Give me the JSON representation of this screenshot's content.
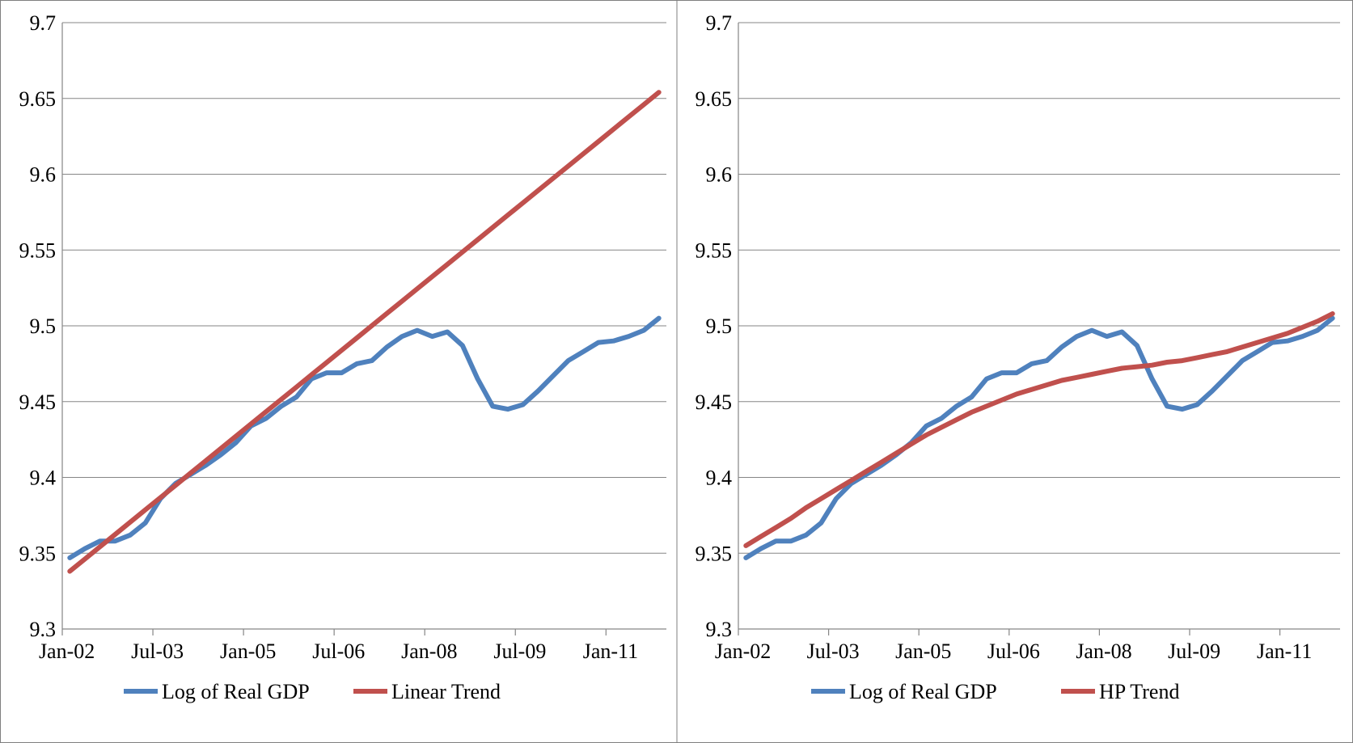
{
  "chart_data": [
    {
      "type": "line",
      "categories": [
        "Jan-02",
        "Apr-02",
        "Jul-02",
        "Oct-02",
        "Jan-03",
        "Apr-03",
        "Jul-03",
        "Oct-03",
        "Jan-04",
        "Apr-04",
        "Jul-04",
        "Oct-04",
        "Jan-05",
        "Apr-05",
        "Jul-05",
        "Oct-05",
        "Jan-06",
        "Apr-06",
        "Jul-06",
        "Oct-06",
        "Jan-07",
        "Apr-07",
        "Jul-07",
        "Oct-07",
        "Jan-08",
        "Apr-08",
        "Jul-08",
        "Oct-08",
        "Jan-09",
        "Apr-09",
        "Jul-09",
        "Oct-09",
        "Jan-10",
        "Apr-10",
        "Jul-10",
        "Oct-10",
        "Jan-11",
        "Apr-11",
        "Jul-11",
        "Oct-11"
      ],
      "tick_labels": [
        "Jan-02",
        "Jul-03",
        "Jan-05",
        "Jul-06",
        "Jan-08",
        "Jul-09",
        "Jan-11"
      ],
      "y_ticks": [
        "9.3",
        "9.35",
        "9.4",
        "9.45",
        "9.5",
        "9.55",
        "9.6",
        "9.65",
        "9.7"
      ],
      "ylim": [
        9.3,
        9.7
      ],
      "grid": true,
      "legend_position": "bottom",
      "series": [
        {
          "name": "Log of Real GDP",
          "color": "#4f81bd",
          "values": [
            9.347,
            9.353,
            9.358,
            9.358,
            9.362,
            9.37,
            9.386,
            9.396,
            9.402,
            9.408,
            9.415,
            9.423,
            9.434,
            9.439,
            9.447,
            9.453,
            9.465,
            9.469,
            9.469,
            9.475,
            9.477,
            9.486,
            9.493,
            9.497,
            9.493,
            9.496,
            9.487,
            9.465,
            9.447,
            9.445,
            9.448,
            9.457,
            9.467,
            9.477,
            9.483,
            9.489,
            9.49,
            9.493,
            9.497,
            9.505
          ]
        },
        {
          "name": "Linear Trend",
          "color": "#c0504d",
          "values": [
            9.3381,
            9.3462,
            9.3543,
            9.3624,
            9.3705,
            9.3786,
            9.3867,
            9.3948,
            9.4029,
            9.411,
            9.4191,
            9.4272,
            9.4353,
            9.4434,
            9.4515,
            9.4596,
            9.4677,
            9.4758,
            9.4839,
            9.492,
            9.5001,
            9.5082,
            9.5163,
            9.5244,
            9.5325,
            9.5406,
            9.5487,
            9.5568,
            9.5649,
            9.573,
            9.5811,
            9.5892,
            9.5973,
            9.6054,
            9.6135,
            9.6216,
            9.6297,
            9.6378,
            9.6459,
            9.654
          ]
        }
      ]
    },
    {
      "type": "line",
      "categories": [
        "Jan-02",
        "Apr-02",
        "Jul-02",
        "Oct-02",
        "Jan-03",
        "Apr-03",
        "Jul-03",
        "Oct-03",
        "Jan-04",
        "Apr-04",
        "Jul-04",
        "Oct-04",
        "Jan-05",
        "Apr-05",
        "Jul-05",
        "Oct-05",
        "Jan-06",
        "Apr-06",
        "Jul-06",
        "Oct-06",
        "Jan-07",
        "Apr-07",
        "Jul-07",
        "Oct-07",
        "Jan-08",
        "Apr-08",
        "Jul-08",
        "Oct-08",
        "Jan-09",
        "Apr-09",
        "Jul-09",
        "Oct-09",
        "Jan-10",
        "Apr-10",
        "Jul-10",
        "Oct-10",
        "Jan-11",
        "Apr-11",
        "Jul-11",
        "Oct-11"
      ],
      "tick_labels": [
        "Jan-02",
        "Jul-03",
        "Jan-05",
        "Jul-06",
        "Jan-08",
        "Jul-09",
        "Jan-11"
      ],
      "y_ticks": [
        "9.3",
        "9.35",
        "9.4",
        "9.45",
        "9.5",
        "9.55",
        "9.6",
        "9.65",
        "9.7"
      ],
      "ylim": [
        9.3,
        9.7
      ],
      "grid": true,
      "legend_position": "bottom",
      "series": [
        {
          "name": "Log of Real GDP",
          "color": "#4f81bd",
          "values": [
            9.347,
            9.353,
            9.358,
            9.358,
            9.362,
            9.37,
            9.386,
            9.396,
            9.402,
            9.408,
            9.415,
            9.423,
            9.434,
            9.439,
            9.447,
            9.453,
            9.465,
            9.469,
            9.469,
            9.475,
            9.477,
            9.486,
            9.493,
            9.497,
            9.493,
            9.496,
            9.487,
            9.465,
            9.447,
            9.445,
            9.448,
            9.457,
            9.467,
            9.477,
            9.483,
            9.489,
            9.49,
            9.493,
            9.497,
            9.505
          ]
        },
        {
          "name": "HP Trend",
          "color": "#c0504d",
          "values": [
            9.355,
            9.361,
            9.367,
            9.373,
            9.38,
            9.386,
            9.392,
            9.398,
            9.404,
            9.41,
            9.416,
            9.422,
            9.428,
            9.433,
            9.438,
            9.443,
            9.447,
            9.451,
            9.455,
            9.458,
            9.461,
            9.464,
            9.466,
            9.468,
            9.47,
            9.472,
            9.473,
            9.474,
            9.476,
            9.477,
            9.479,
            9.481,
            9.483,
            9.486,
            9.489,
            9.492,
            9.495,
            9.499,
            9.503,
            9.508
          ]
        }
      ]
    }
  ]
}
